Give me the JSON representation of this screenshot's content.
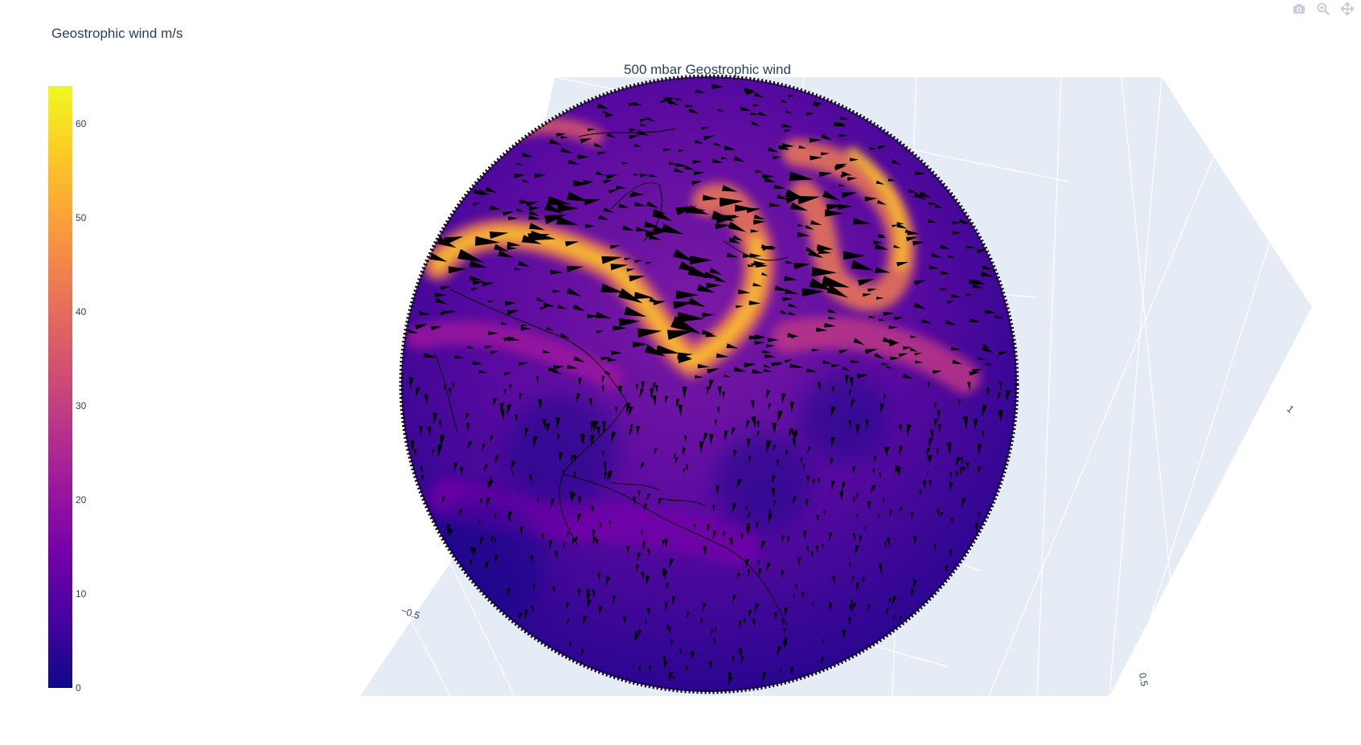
{
  "chart_data": {
    "type": "heatmap",
    "title": "500 mbar Geostrophic wind",
    "colorbar": {
      "title": "Geostrophic wind m/s",
      "range": [
        0,
        64
      ],
      "ticks": [
        0,
        10,
        20,
        30,
        40,
        50,
        60
      ],
      "colorscale": "plasma"
    },
    "scene": {
      "axis_tick_labels": [
        "−0.5",
        "0.5",
        "1"
      ],
      "background": "#e5ecf6",
      "overlay": "geostrophic wind vectors (cones) on sphere with coastlines"
    }
  },
  "colors": {
    "plasma": [
      "#0d0887",
      "#46039f",
      "#7201a8",
      "#9c179e",
      "#bd3786",
      "#d8576b",
      "#ed7953",
      "#fb9f3a",
      "#fdca26",
      "#f0f921"
    ],
    "scene_bg": "#e5ecf6",
    "grid": "#ffffff",
    "text": "#2a3f5f"
  },
  "modebar": {
    "icons": [
      "camera-icon",
      "zoom-icon",
      "pan-icon"
    ]
  }
}
